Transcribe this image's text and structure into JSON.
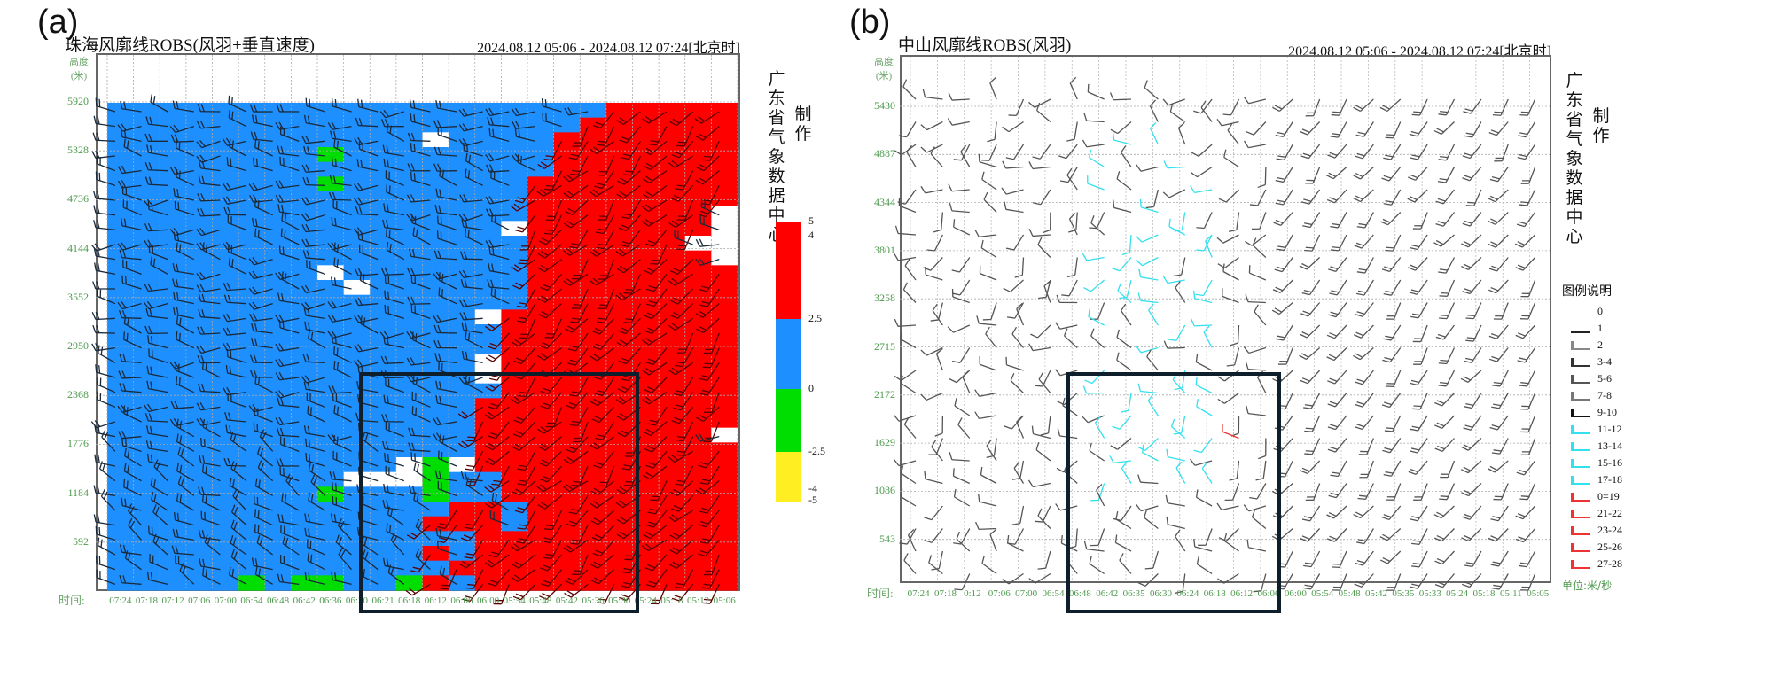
{
  "chart_data": [
    {
      "type": "heatmap",
      "panel_label": "(a)",
      "title": "珠海风廓线ROBS(风羽+垂直速度)",
      "date_range": "2024.08.12 05:06 - 2024.08.12 07:24[北京时]",
      "ylabel": "高度(米)",
      "ylabel_lines": [
        "高度",
        "(米)"
      ],
      "xlabel": "时间:",
      "y_ticks": [
        "5920",
        "5328",
        "4736",
        "4144",
        "3552",
        "2950",
        "2368",
        "1776",
        "1184",
        "592"
      ],
      "x_ticks": [
        "07:24",
        "07:18",
        "07:12",
        "07:06",
        "07:00",
        "06:54",
        "06:48",
        "06:42",
        "06:36",
        "06:30",
        "06:21",
        "06:18",
        "06:12",
        "06:06",
        "06:00",
        "05:54",
        "05:48",
        "05:42",
        "05:36",
        "05:30",
        "05:24",
        "05:18",
        "05:12",
        "05:06"
      ],
      "maker_text": "广东省气象数据中心",
      "maker_suffix": "制作",
      "colorbar": {
        "ticks": [
          "5",
          "4",
          "2.5",
          "0",
          "-2.5",
          "-4",
          "-5"
        ],
        "bins": [
          {
            "range": [
              2.5,
              5
            ],
            "color": "#ff0000"
          },
          {
            "range": [
              0,
              2.5
            ],
            "color": "#1e8fff"
          },
          {
            "range": [
              -2.5,
              0
            ],
            "color": "#00dd00"
          },
          {
            "range": [
              -5,
              -2.5
            ],
            "color": "#ffee22"
          }
        ]
      },
      "cell_legend": {
        "B": "0~2.5",
        "R": "2.5~5",
        "G": "-2.5~0",
        "W": "no data"
      },
      "grid_rows_top_to_bottom": [
        "BBBBBBBBBBBBBBBBBBBRRRRR",
        "BBBBBBBBBBBBBBBBBBRRRRRR",
        "BBBBBBBBBBBBWBBBBRRRRRRR",
        "BBBBBBBBGBBBBBBBBRRRRRRR",
        "BBBBBBBBBBBBBBBBBRRRRRRR",
        "BBBBBBBBGBBBBBBBRRRRRRRR",
        "BBBBBBBBBBBBBBBBRRRRRRRR",
        "BBBBBBBBBBBBBBBBRRRRRRRW",
        "BBBBBBBBBBBBBBBWRRRRRRRW",
        "BBBBBBBBBBBBBBBBRRRRRRWW",
        "BBBBBBBBBBBBBBBBRRRRRRRW",
        "BBBBBBBBWBBBBBBBRRRRRRRR",
        "BBBBBBBBBWBBBBBBRRRRRRRR",
        "BBBBBBBBBBBBBBBBRRRRRRRR",
        "BBBBBBBBBBBBBBWRRRRRRRRR",
        "BBBBBBBBBBBBBBBRRRRRRRRR",
        "BBBBBBBBBBBBBBBRRRRRRRRR",
        "BBBBBBBBBBBBBBWRRRRRRRRR",
        "BBBBBBBBBBBBBBWRRRRRRRRR",
        "BBBBBBBBBBBBBBBRRRRRRRRR",
        "BBBBBBBBBBBBBBRRRRRRRRRR",
        "BBBBBBBBBBBBBBRRRRRRRRRR",
        "BBBBBBBBBBBBBBRRRRRRRRRW",
        "BBBBBBBBBBBBBBRRRRRRRRRR",
        "BBBBBBBBBBBWGWRRRRRRRRRR",
        "BBBBBBBBBWWWGBBRRRRRRRRR",
        "BBBBBBBBGBBBGBBRRRRRRRRR",
        "BBBBBBBBBBBBBRRBRRRRRRRR",
        "BBBBBBBBBBBBRRRBRRRRRRRR",
        "BBBBBBBBBBBBBBRRRRRRRRRR",
        "BBBBBBBBBBBBRBRRRRRRRRRR",
        "BBBBBBBBBBBBBRRRRRRRRRRR",
        "BBBBBGBGGBBGRBRRRRRRRRRR"
      ],
      "highlight_box": {
        "x_range": [
          "06:30",
          "05:30"
        ],
        "y_range_m": [
          0,
          2500
        ]
      }
    },
    {
      "type": "scatter",
      "panel_label": "(b)",
      "title": "中山风廓线ROBS(风羽)",
      "date_range": "2024.08.12 05:06 - 2024.08.12 07:24[北京时]",
      "ylabel": "高度(米)",
      "ylabel_lines": [
        "高度",
        "(米)"
      ],
      "xlabel": "时间:",
      "y_ticks": [
        "5430",
        "4887",
        "4344",
        "3801",
        "3258",
        "2715",
        "2172",
        "1629",
        "1086",
        "543"
      ],
      "x_ticks": [
        "07:24",
        "07:18",
        "0:12",
        "07:06",
        "07:00",
        "06:54",
        "06:48",
        "06:42",
        "06:35",
        "06:30",
        "06:24",
        "06:18",
        "06:12",
        "06:06",
        "06:00",
        "05:54",
        "05:48",
        "05:42",
        "05:35",
        "05:33",
        "05:24",
        "05:18",
        "05:11",
        "05:05"
      ],
      "maker_text": "广东省气象数据中心",
      "maker_suffix": "制作",
      "legend": {
        "title": "图例说明",
        "items": [
          {
            "label": "0",
            "color": "#888888"
          },
          {
            "label": "1",
            "color": "#222222"
          },
          {
            "label": "2",
            "color": "#888888"
          },
          {
            "label": "3-4",
            "color": "#333333"
          },
          {
            "label": "5-6",
            "color": "#555555"
          },
          {
            "label": "7-8",
            "color": "#777777"
          },
          {
            "label": "9-10",
            "color": "#111111"
          },
          {
            "label": "11-12",
            "color": "#33e0ee"
          },
          {
            "label": "13-14",
            "color": "#33e0ee"
          },
          {
            "label": "15-16",
            "color": "#33e0ee"
          },
          {
            "label": "17-18",
            "color": "#33e0ee"
          },
          {
            "label": "0=19",
            "color": "#ee3333"
          },
          {
            "label": "21-22",
            "color": "#ee3333"
          },
          {
            "label": "23-24",
            "color": "#ee3333"
          },
          {
            "label": "25-26",
            "color": "#ee3333"
          },
          {
            "label": "27-28",
            "color": "#ee3333"
          }
        ],
        "unit": "单位:米/秒"
      },
      "cyan_columns": [
        "06:42",
        "06:35",
        "06:30",
        "06:24",
        "06:18"
      ],
      "red_column": "06:12",
      "highlight_box": {
        "x_range": [
          "06:48",
          "06:06"
        ],
        "y_range_m": [
          0,
          2500
        ]
      }
    }
  ]
}
